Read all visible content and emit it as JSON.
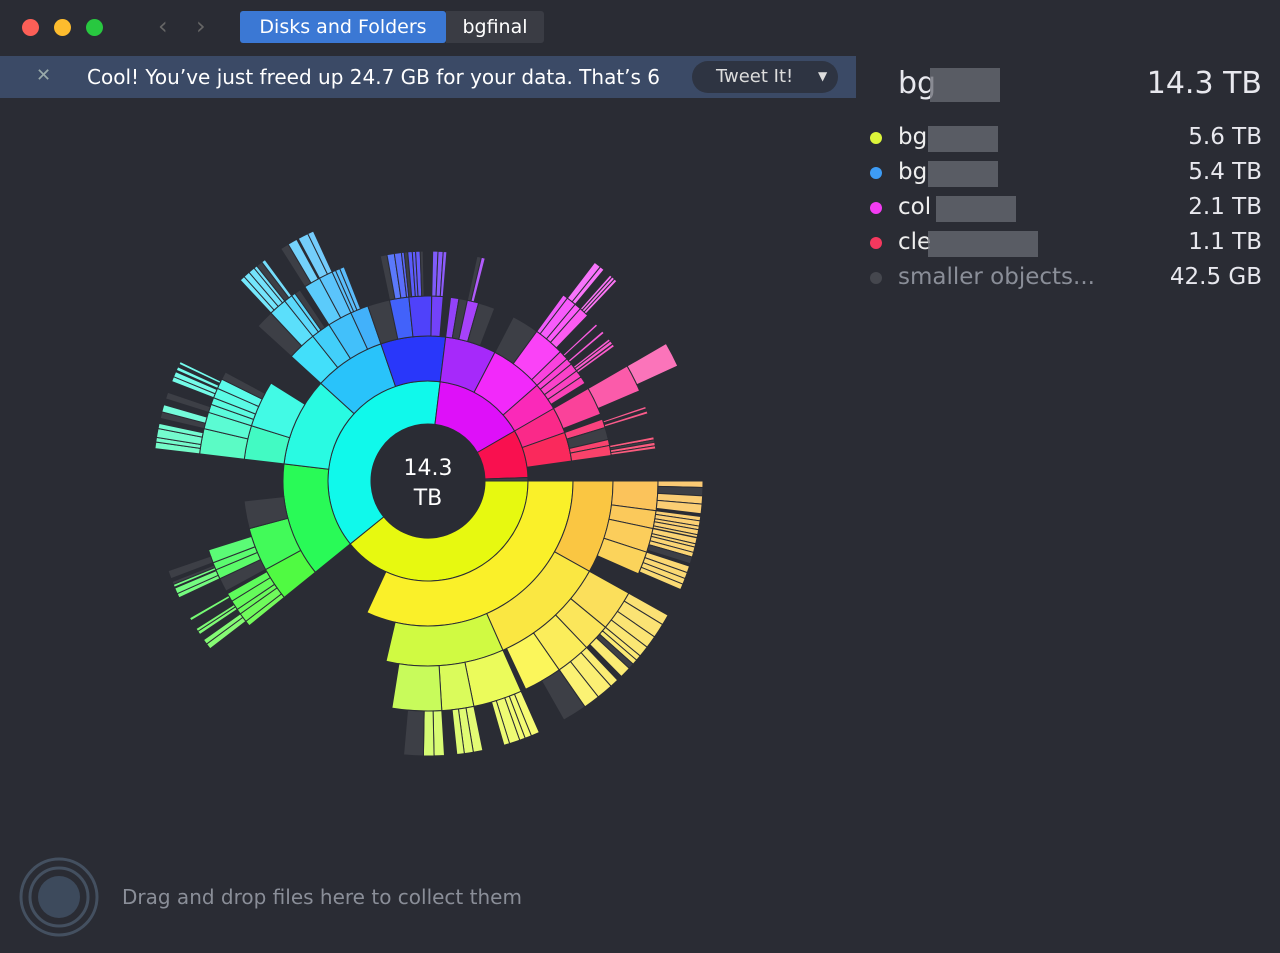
{
  "window": {
    "breadcrumbs": [
      "Disks and Folders",
      "bgfinal"
    ]
  },
  "banner": {
    "message": "Cool! You’ve just freed up 24.7 GB for your data. That’s 6",
    "button": "Tweet It!"
  },
  "summary": {
    "name": "bg",
    "size": "14.3 TB"
  },
  "items": [
    {
      "name": "bg",
      "size": "5.6 TB"
    },
    {
      "name": "bg",
      "size": "5.4 TB"
    },
    {
      "name": "col",
      "size": "2.1 TB"
    },
    {
      "name": "cle",
      "size": "1.1 TB"
    },
    {
      "name": "smaller objects...",
      "size": "42.5 GB"
    }
  ],
  "center": {
    "value": "14.3",
    "unit": "TB"
  },
  "dropzone": {
    "hint": "Drag and drop files here to collect them"
  }
}
